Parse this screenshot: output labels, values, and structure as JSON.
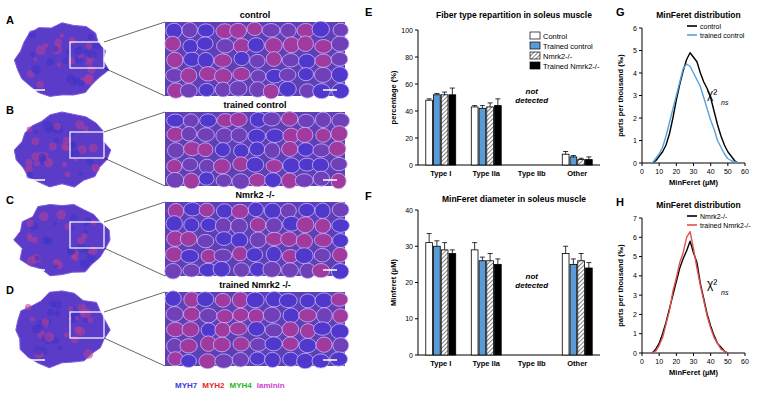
{
  "figure": {
    "image_panels": [
      {
        "letter": "A",
        "label": "control"
      },
      {
        "letter": "B",
        "label": "trained control"
      },
      {
        "letter": "C",
        "label": "Nmrk2 -/-"
      },
      {
        "letter": "D",
        "label": "trained Nmrk2 -/-"
      }
    ],
    "stain_legend": [
      {
        "text": "MYH7",
        "color": "#3a3ad8"
      },
      {
        "text": "MYH2",
        "color": "#e02828"
      },
      {
        "text": "MYH4",
        "color": "#22b822"
      },
      {
        "text": "laminin",
        "color": "#d040d0"
      }
    ]
  },
  "chart_data": [
    {
      "type": "bar",
      "panel_letter": "E",
      "title": "Fiber type repartition in soleus muscle",
      "ylabel": "percentage (%)",
      "categories": [
        "Type I",
        "Type IIa",
        "Type IIb",
        "Other"
      ],
      "series": [
        {
          "name": "Control",
          "color": "#ffffff",
          "values": [
            48,
            43,
            null,
            8
          ],
          "errors": [
            1,
            1,
            null,
            2
          ]
        },
        {
          "name": "Trained control",
          "color": "#5b9bd5",
          "values": [
            52,
            42,
            null,
            6
          ],
          "errors": [
            1,
            2,
            null,
            1
          ]
        },
        {
          "name": "Nmrk2-/-",
          "color": "#ffffff",
          "values": [
            52,
            43,
            null,
            4
          ],
          "errors": [
            2,
            3,
            null,
            1
          ]
        },
        {
          "name": "Trained Nmrk2-/-",
          "color": "#000000",
          "values": [
            52,
            44,
            null,
            4
          ],
          "errors": [
            5,
            5,
            null,
            2
          ]
        }
      ],
      "ylim": [
        0,
        100
      ],
      "yticks": [
        0,
        20,
        40,
        60,
        80,
        100
      ],
      "annotations": [
        "not detected"
      ],
      "legend": "upper right"
    },
    {
      "type": "bar",
      "panel_letter": "F",
      "title": "MinFeret diameter in soleus muscle",
      "ylabel": "Minferet (µM)",
      "categories": [
        "Type I",
        "Type IIa",
        "Type IIb",
        "Other"
      ],
      "series": [
        {
          "color": "#ffffff",
          "values": [
            31,
            29,
            null,
            28
          ],
          "errors": [
            2.5,
            2,
            null,
            2
          ]
        },
        {
          "color": "#5b9bd5",
          "values": [
            30,
            26,
            null,
            25
          ],
          "errors": [
            1.5,
            1,
            null,
            1.5
          ]
        },
        {
          "color": "#ffffff",
          "values": [
            29,
            26,
            null,
            26
          ],
          "errors": [
            2,
            2,
            null,
            2
          ]
        },
        {
          "color": "#000000",
          "values": [
            28,
            25,
            null,
            24
          ],
          "errors": [
            1,
            1.5,
            null,
            1.5
          ]
        }
      ],
      "ylim": [
        0,
        40
      ],
      "yticks": [
        0,
        10,
        20,
        30,
        40
      ],
      "annotations": [
        "not detected"
      ]
    },
    {
      "type": "line",
      "panel_letter": "G",
      "title": "MinFeret distribution",
      "xlabel": "MinFeret (µM)",
      "ylabel": "parts per thousand (‰)",
      "x": [
        6,
        8,
        10,
        12,
        14,
        16,
        18,
        20,
        22,
        24,
        26,
        28,
        30,
        32,
        34,
        36,
        38,
        40,
        42,
        44,
        46,
        48,
        50,
        52,
        54,
        56
      ],
      "series": [
        {
          "name": "control",
          "color": "#000000",
          "values": [
            0,
            0.1,
            0.3,
            0.5,
            0.8,
            1.3,
            2.0,
            2.8,
            3.5,
            4.1,
            4.6,
            4.9,
            4.7,
            4.5,
            4.0,
            3.6,
            3.3,
            2.9,
            2.3,
            1.7,
            1.2,
            0.8,
            0.5,
            0.3,
            0.1,
            0
          ]
        },
        {
          "name": "trained control",
          "color": "#5aa0d8",
          "values": [
            0,
            0.2,
            0.4,
            0.7,
            1.2,
            1.8,
            2.4,
            3.0,
            3.6,
            4.2,
            4.4,
            4.3,
            4.0,
            3.7,
            3.4,
            2.9,
            2.4,
            1.9,
            1.5,
            1.0,
            0.7,
            0.4,
            0.2,
            0.1,
            0.05,
            0
          ]
        }
      ],
      "xlim": [
        0,
        60
      ],
      "xticks": [
        0,
        10,
        20,
        30,
        40,
        50,
        60
      ],
      "ylim": [
        0,
        6
      ],
      "yticks": [
        0,
        1,
        2,
        3,
        4,
        5,
        6
      ],
      "annotations": [
        "χ²",
        "ns"
      ],
      "legend": "upper right"
    },
    {
      "type": "line",
      "panel_letter": "H",
      "title": "MinFeret distribution",
      "xlabel": "MinFeret (µM)",
      "ylabel": "parts per thousand (‰)",
      "x": [
        6,
        8,
        10,
        12,
        14,
        16,
        18,
        20,
        22,
        24,
        26,
        28,
        30,
        32,
        34,
        36,
        38,
        40,
        42,
        44,
        46,
        48,
        50
      ],
      "series": [
        {
          "name": "Nmrk2-/-",
          "color": "#000000",
          "values": [
            0,
            0.2,
            0.5,
            1.0,
            1.6,
            2.3,
            3.0,
            3.7,
            4.4,
            4.9,
            5.3,
            5.8,
            5.2,
            4.7,
            3.6,
            2.8,
            2.0,
            1.4,
            0.9,
            0.5,
            0.3,
            0.1,
            0
          ]
        },
        {
          "name": "trained Nmrk2-/-",
          "color": "#e05050",
          "values": [
            0,
            0.1,
            0.4,
            0.8,
            1.5,
            2.2,
            3.2,
            3.9,
            4.7,
            5.2,
            6.0,
            6.3,
            5.4,
            4.4,
            3.5,
            2.7,
            1.9,
            1.3,
            0.8,
            0.5,
            0.2,
            0.1,
            0
          ]
        }
      ],
      "xlim": [
        0,
        60
      ],
      "xticks": [
        0,
        10,
        20,
        30,
        40,
        50,
        60
      ],
      "ylim": [
        0,
        7
      ],
      "yticks": [
        0,
        1,
        2,
        3,
        4,
        5,
        6,
        7
      ],
      "annotations": [
        "χ²",
        "ns"
      ],
      "legend": "upper right"
    }
  ]
}
